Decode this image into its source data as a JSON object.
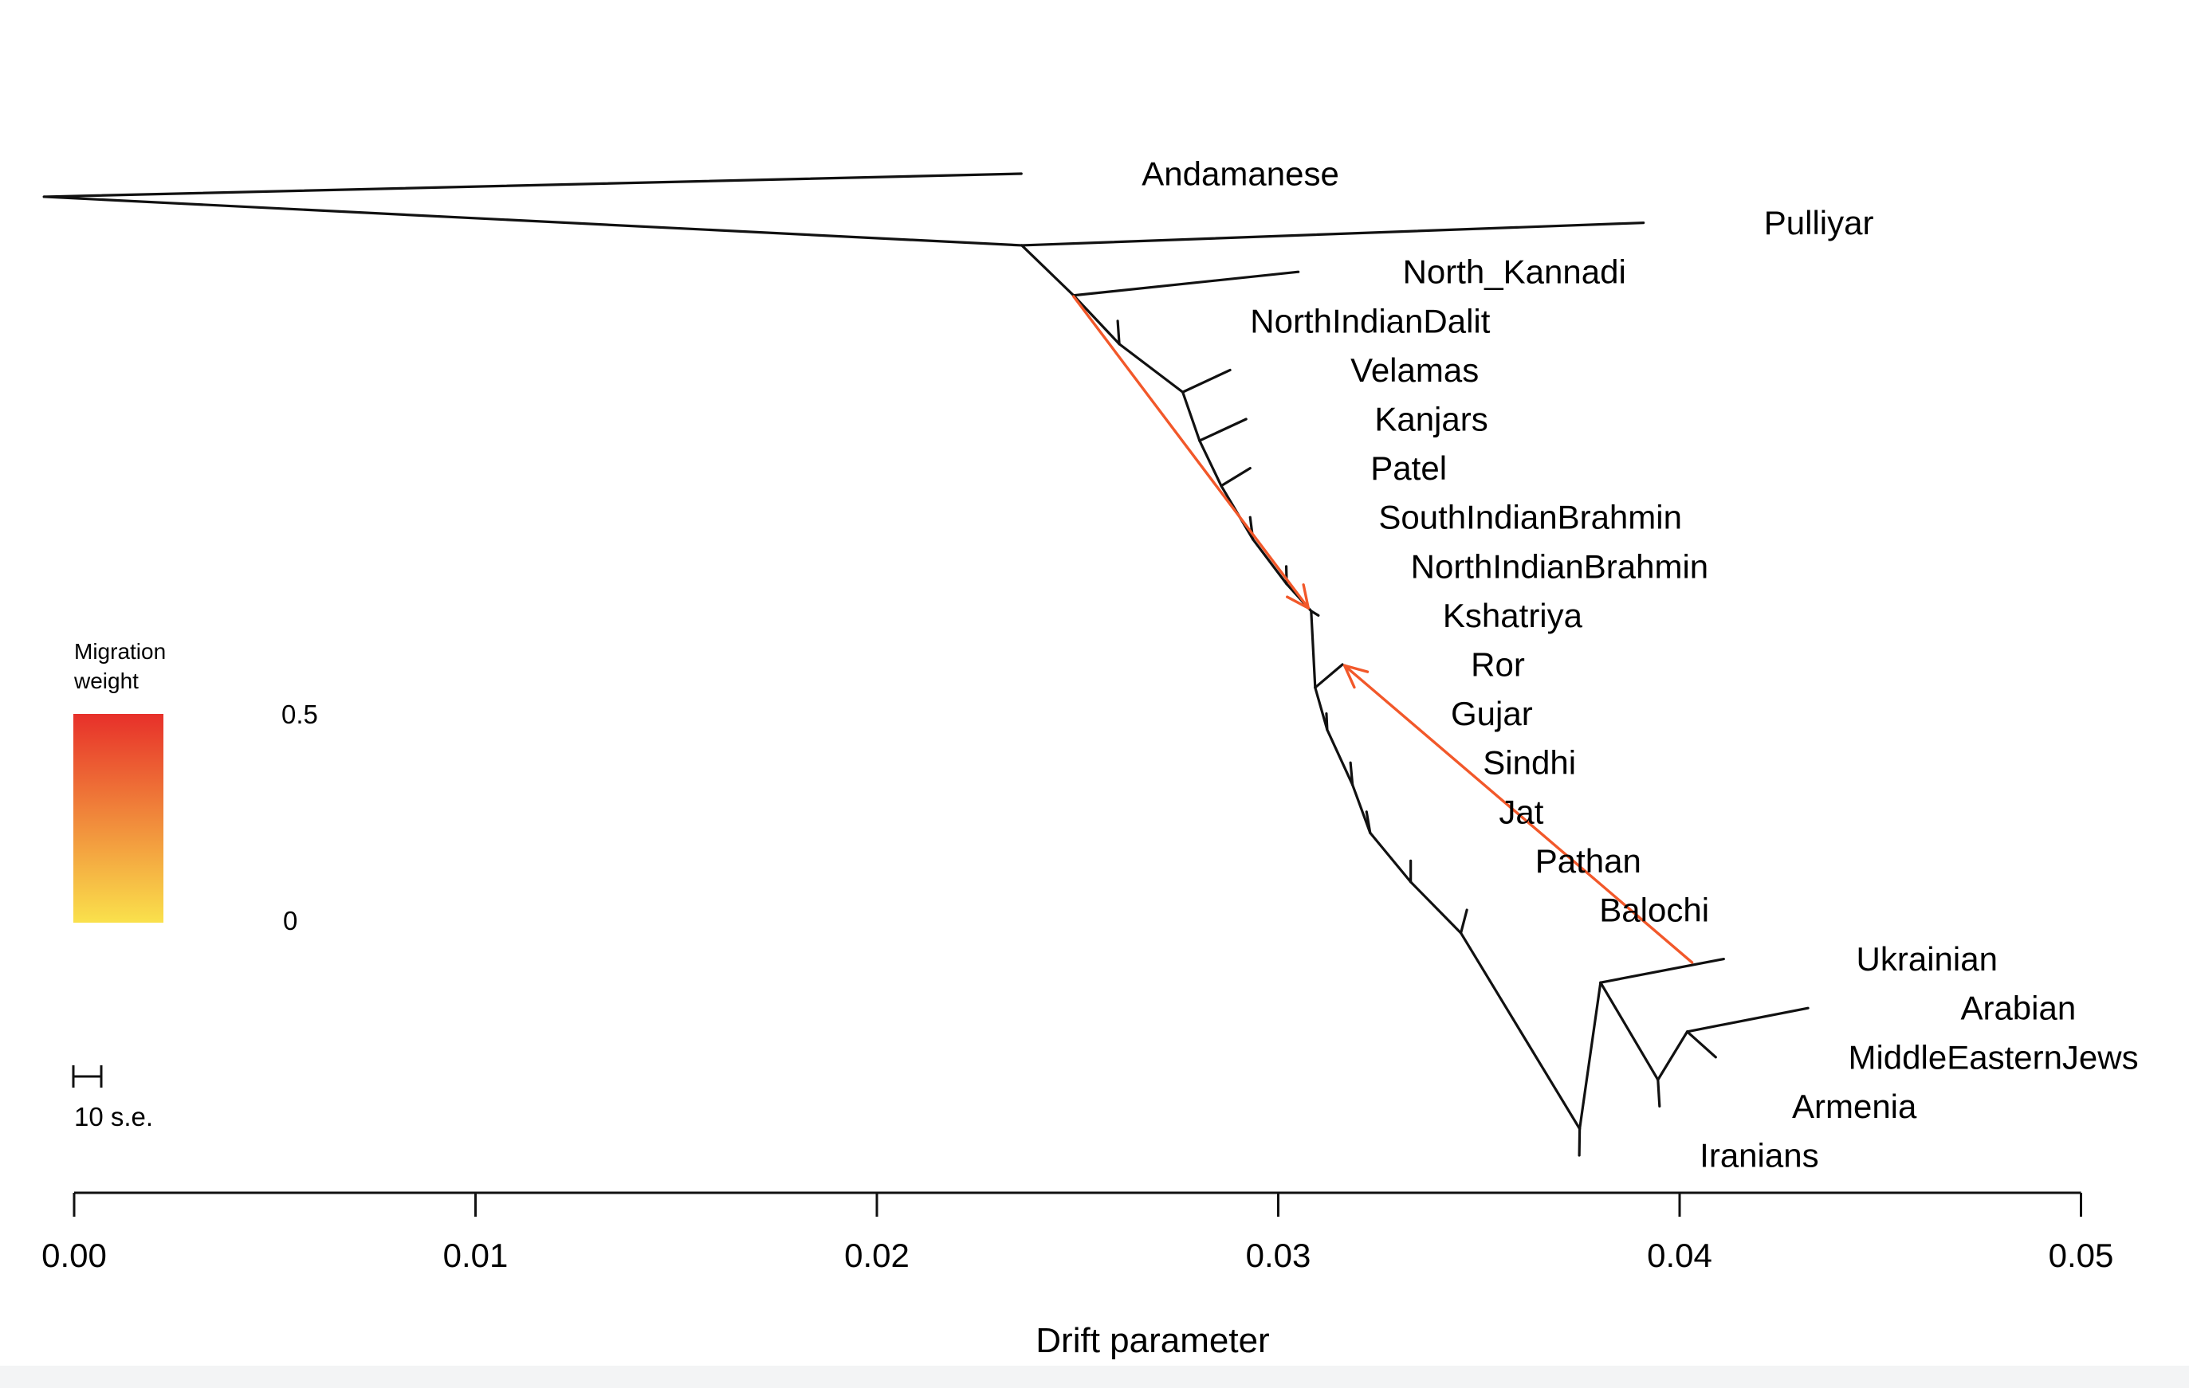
{
  "chart_data": {
    "type": "tree",
    "chart_kind": "TreeMix admixture graph (maximum-likelihood tree with migration edges)",
    "title": "",
    "xlabel": "Drift parameter",
    "x_ticks": {
      "values": [
        0,
        0.01,
        0.02,
        0.03,
        0.04,
        0.05
      ],
      "labels": [
        "0.00",
        "0.01",
        "0.02",
        "0.03",
        "0.04",
        "0.05"
      ]
    },
    "xlim": [
      0,
      0.05
    ],
    "grid": false,
    "topology_newick": "(Andamanese,(Pulliyar,(North_Kannadi,(NorthIndianDalit,(Velamas,(Kanjars,(Patel,(SouthIndianBrahmin,(NorthIndianBrahmin,(Kshatriya,(Ror,(Gujar,(Sindhi,(Jat,(Pathan,(Balochi,(Iranians,(Ukrainian,(Armenia,(Arabian,MiddleEasternJews))))))))))))))))))));",
    "populations": [
      {
        "name": "Andamanese",
        "drift": 0.0236,
        "row": 0,
        "label_drift": 0.0266
      },
      {
        "name": "Pulliyar",
        "drift": 0.0391,
        "row": 1,
        "label_drift": 0.0421
      },
      {
        "name": "North_Kannadi",
        "drift": 0.0305,
        "row": 2,
        "label_drift": 0.0331
      },
      {
        "name": "NorthIndianDalit",
        "drift": 0.026,
        "row": 3,
        "label_drift": 0.0293
      },
      {
        "name": "Velamas",
        "drift": 0.0288,
        "row": 4,
        "label_drift": 0.0318
      },
      {
        "name": "Kanjars",
        "drift": 0.0292,
        "row": 5,
        "label_drift": 0.0324
      },
      {
        "name": "Patel",
        "drift": 0.0293,
        "row": 6,
        "label_drift": 0.0323
      },
      {
        "name": "SouthIndianBrahmin",
        "drift": 0.0293,
        "row": 7,
        "label_drift": 0.0325
      },
      {
        "name": "NorthIndianBrahmin",
        "drift": 0.0302,
        "row": 8,
        "label_drift": 0.0333
      },
      {
        "name": "Kshatriya",
        "drift": 0.031,
        "row": 9,
        "label_drift": 0.0341
      },
      {
        "name": "Ror",
        "drift": 0.0316,
        "row": 10,
        "label_drift": 0.0348
      },
      {
        "name": "Gujar",
        "drift": 0.0312,
        "row": 11,
        "label_drift": 0.0343
      },
      {
        "name": "Sindhi",
        "drift": 0.0318,
        "row": 12,
        "label_drift": 0.0351
      },
      {
        "name": "Jat",
        "drift": 0.0322,
        "row": 13,
        "label_drift": 0.0355
      },
      {
        "name": "Pathan",
        "drift": 0.0333,
        "row": 14,
        "label_drift": 0.0364
      },
      {
        "name": "Balochi",
        "drift": 0.0347,
        "row": 15,
        "label_drift": 0.038
      },
      {
        "name": "Ukrainian",
        "drift": 0.0411,
        "row": 16,
        "label_drift": 0.0444
      },
      {
        "name": "Arabian",
        "drift": 0.0432,
        "row": 17,
        "label_drift": 0.047
      },
      {
        "name": "MiddleEasternJews",
        "drift": 0.0409,
        "row": 18,
        "label_drift": 0.0442
      },
      {
        "name": "Armenia",
        "drift": 0.0395,
        "row": 19,
        "label_drift": 0.0428
      },
      {
        "name": "Iranians",
        "drift": 0.0375,
        "row": 20,
        "label_drift": 0.0405
      }
    ],
    "plot": {
      "internal_nodes": {
        "root": [
          -0.00075,
          0.47
        ],
        "A": [
          0.02361,
          1.46
        ],
        "B": [
          0.0249,
          2.48
        ],
        "C": [
          0.02604,
          3.47
        ],
        "D": [
          0.02762,
          4.45
        ],
        "E": [
          0.02804,
          5.44
        ],
        "F": [
          0.02858,
          6.36
        ],
        "G": [
          0.02937,
          7.45
        ],
        "H": [
          0.03021,
          8.36
        ],
        "K": [
          0.03082,
          8.91
        ],
        "N_ror": [
          0.03092,
          10.47
        ],
        "N_gujar": [
          0.03122,
          11.33
        ],
        "N_sindhi": [
          0.03185,
          12.45
        ],
        "N_jat": [
          0.03229,
          13.43
        ],
        "N_pathan": [
          0.0333,
          14.43
        ],
        "N_balochi": [
          0.03455,
          15.47
        ],
        "P": [
          0.03751,
          19.46
        ],
        "Q": [
          0.03803,
          16.48
        ],
        "R": [
          0.03946,
          18.46
        ],
        "S": [
          0.04019,
          17.48
        ]
      },
      "edges": [
        [
          "root",
          "t_Andamanese"
        ],
        [
          "root",
          "A"
        ],
        [
          "A",
          "t_Pulliyar"
        ],
        [
          "A",
          "B"
        ],
        [
          "B",
          "t_North_Kannadi"
        ],
        [
          "B",
          "C"
        ],
        [
          "C",
          "t_NorthIndianDalit"
        ],
        [
          "C",
          "D"
        ],
        [
          "D",
          "t_Velamas"
        ],
        [
          "D",
          "E"
        ],
        [
          "E",
          "t_Kanjars"
        ],
        [
          "E",
          "F"
        ],
        [
          "F",
          "t_Patel"
        ],
        [
          "F",
          "G"
        ],
        [
          "G",
          "t_SouthIndianBrahmin"
        ],
        [
          "G",
          "H"
        ],
        [
          "H",
          "t_NorthIndianBrahmin"
        ],
        [
          "H",
          "K"
        ],
        [
          "K",
          "t_Kshatriya"
        ],
        [
          "K",
          "N_ror"
        ],
        [
          "N_ror",
          "t_Ror"
        ],
        [
          "N_ror",
          "N_gujar"
        ],
        [
          "N_gujar",
          "t_Gujar"
        ],
        [
          "N_gujar",
          "N_sindhi"
        ],
        [
          "N_sindhi",
          "t_Sindhi"
        ],
        [
          "N_sindhi",
          "N_jat"
        ],
        [
          "N_jat",
          "t_Jat"
        ],
        [
          "N_jat",
          "N_pathan"
        ],
        [
          "N_pathan",
          "t_Pathan"
        ],
        [
          "N_pathan",
          "N_balochi"
        ],
        [
          "N_balochi",
          "t_Balochi"
        ],
        [
          "N_balochi",
          "P"
        ],
        [
          "P",
          "t_Iranians"
        ],
        [
          "P",
          "Q"
        ],
        [
          "Q",
          "t_Ukrainian"
        ],
        [
          "Q",
          "R"
        ],
        [
          "R",
          "t_Armenia"
        ],
        [
          "R",
          "S"
        ],
        [
          "S",
          "t_Arabian"
        ],
        [
          "S",
          "t_MiddleEasternJews"
        ]
      ]
    },
    "migration_edges": [
      {
        "source_desc": "ancestral node at North_Kannadi split",
        "target_desc": "Kshatriya branch point",
        "from": [
          0.0249,
          2.5
        ],
        "to": [
          0.03075,
          8.85
        ],
        "color": "#F2582A"
      },
      {
        "source_desc": "Ukrainian terminal branch",
        "target_desc": "Ror tip",
        "from": [
          0.04031,
          16.07
        ],
        "to": [
          0.03165,
          10.02
        ],
        "color": "#F2582A"
      }
    ],
    "legend": {
      "title_line1": "Migration",
      "title_line2": "weight",
      "max_label": "0.5",
      "min_label": "0",
      "color_top": "#E7302A",
      "color_bottom": "#FAE14C"
    },
    "scale_bar": {
      "label": "10 s.e."
    },
    "colors": {
      "tree": "#111111",
      "migration": "#F2582A",
      "text": "#000000"
    }
  }
}
